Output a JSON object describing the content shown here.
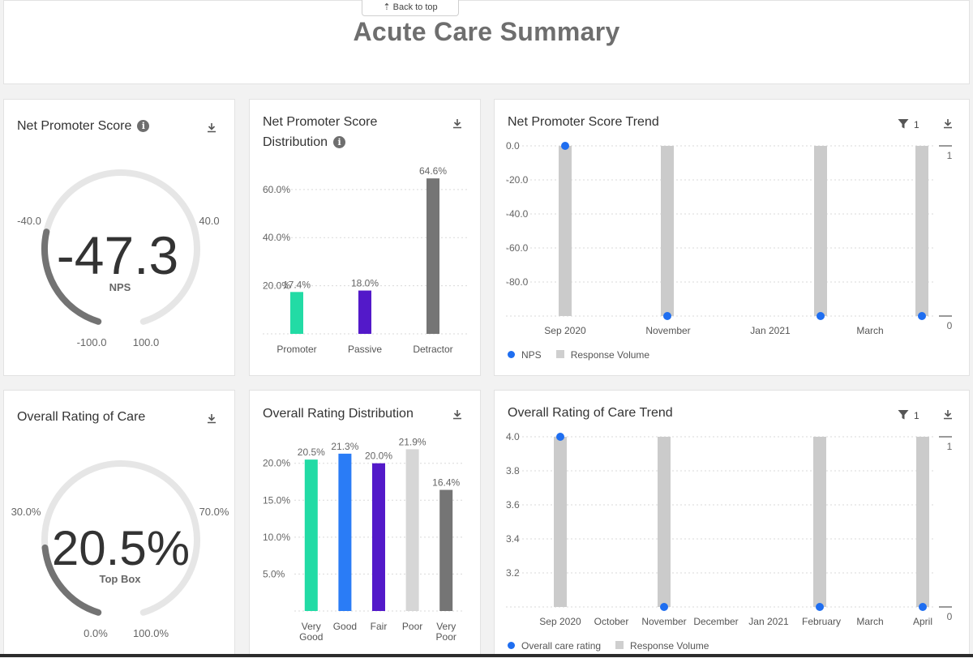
{
  "header": {
    "back_to_top": "⇡ Back to top",
    "title": "Acute Care Summary"
  },
  "nps_card": {
    "title": "Net Promoter Score",
    "value": "-47.3",
    "value_label": "NPS",
    "gauge_fraction": 0.263,
    "labels": {
      "tl": "-40.0",
      "tr": "40.0",
      "bl": "-100.0",
      "br": "100.0"
    }
  },
  "rating_card": {
    "title": "Overall Rating of Care",
    "value": "20.5%",
    "value_label": "Top Box",
    "gauge_fraction": 0.205,
    "labels": {
      "tl": "30.0%",
      "tr": "70.0%",
      "bl": "0.0%",
      "br": "100.0%"
    }
  },
  "nps_dist": {
    "title_line1": "Net Promoter Score",
    "title_line2": "Distribution"
  },
  "rating_dist": {
    "title": "Overall Rating Distribution"
  },
  "nps_trend": {
    "title": "Net Promoter Score Trend",
    "filter_count": "1",
    "legend_primary": "NPS",
    "legend_secondary": "Response Volume"
  },
  "rating_trend": {
    "title": "Overall Rating of Care Trend",
    "filter_count": "1",
    "legend_primary": "Overall care rating",
    "legend_secondary": "Response Volume"
  },
  "colors": {
    "green": "#22dba5",
    "blue": "#2a7cf6",
    "purple": "#5319c9",
    "light_gray": "#d6d6d6",
    "dark_gray": "#757575",
    "dot_blue": "#1f6ef0",
    "bar_gray": "#cbcbcb"
  },
  "chart_data": [
    {
      "id": "nps_dist",
      "type": "bar",
      "categories": [
        "Promoter",
        "Passive",
        "Detractor"
      ],
      "values": [
        17.4,
        18.0,
        64.6
      ],
      "value_labels": [
        "17.4%",
        "18.0%",
        "64.6%"
      ],
      "colors": [
        "#22dba5",
        "#5319c9",
        "#757575"
      ],
      "yticks": [
        20,
        40,
        60
      ],
      "ytick_labels": [
        "20.0%",
        "40.0%",
        "60.0%"
      ],
      "ylim": [
        0,
        66
      ]
    },
    {
      "id": "rating_dist",
      "type": "bar",
      "categories": [
        [
          "Very",
          "Good"
        ],
        [
          "Good"
        ],
        [
          "Fair"
        ],
        [
          "Poor"
        ],
        [
          "Very",
          "Poor"
        ]
      ],
      "values": [
        20.5,
        21.3,
        20.0,
        21.9,
        16.4
      ],
      "value_labels": [
        "20.5%",
        "21.3%",
        "20.0%",
        "21.9%",
        "16.4%"
      ],
      "colors": [
        "#22dba5",
        "#2a7cf6",
        "#5319c9",
        "#d6d6d6",
        "#757575"
      ],
      "yticks": [
        5,
        10,
        15,
        20
      ],
      "ytick_labels": [
        "5.0%",
        "10.0%",
        "15.0%",
        "20.0%"
      ],
      "ylim": [
        0,
        22.6
      ]
    },
    {
      "id": "nps_trend",
      "type": "bar+scatter",
      "x_labels": [
        "Sep 2020",
        "November",
        "Jan 2021",
        "March"
      ],
      "y_ticks": [
        0,
        -20,
        -40,
        -60,
        -80
      ],
      "y_tick_labels": [
        "0.0",
        "-20.0",
        "-40.0",
        "-60.0",
        "-80.0"
      ],
      "ylim": [
        -100,
        0
      ],
      "y2_ticks": [
        "1",
        "0"
      ],
      "y2lim": [
        0,
        1
      ],
      "bars": [
        1,
        1,
        1,
        1
      ],
      "points": [
        0,
        -100,
        -100,
        -100
      ]
    },
    {
      "id": "rating_trend",
      "type": "bar+scatter",
      "x_labels": [
        "Sep 2020",
        "October",
        "November",
        "December",
        "Jan 2021",
        "February",
        "March",
        "April"
      ],
      "y_ticks": [
        4.0,
        3.8,
        3.6,
        3.4,
        3.2
      ],
      "y_tick_labels": [
        "4.0",
        "3.8",
        "3.6",
        "3.4",
        "3.2"
      ],
      "ylim": [
        3.0,
        4.0
      ],
      "y2_ticks": [
        "1",
        "0"
      ],
      "y2lim": [
        0,
        1
      ],
      "bars": [
        1,
        1,
        1,
        1
      ],
      "points": [
        4.0,
        3.0,
        3.0,
        3.0
      ]
    }
  ]
}
